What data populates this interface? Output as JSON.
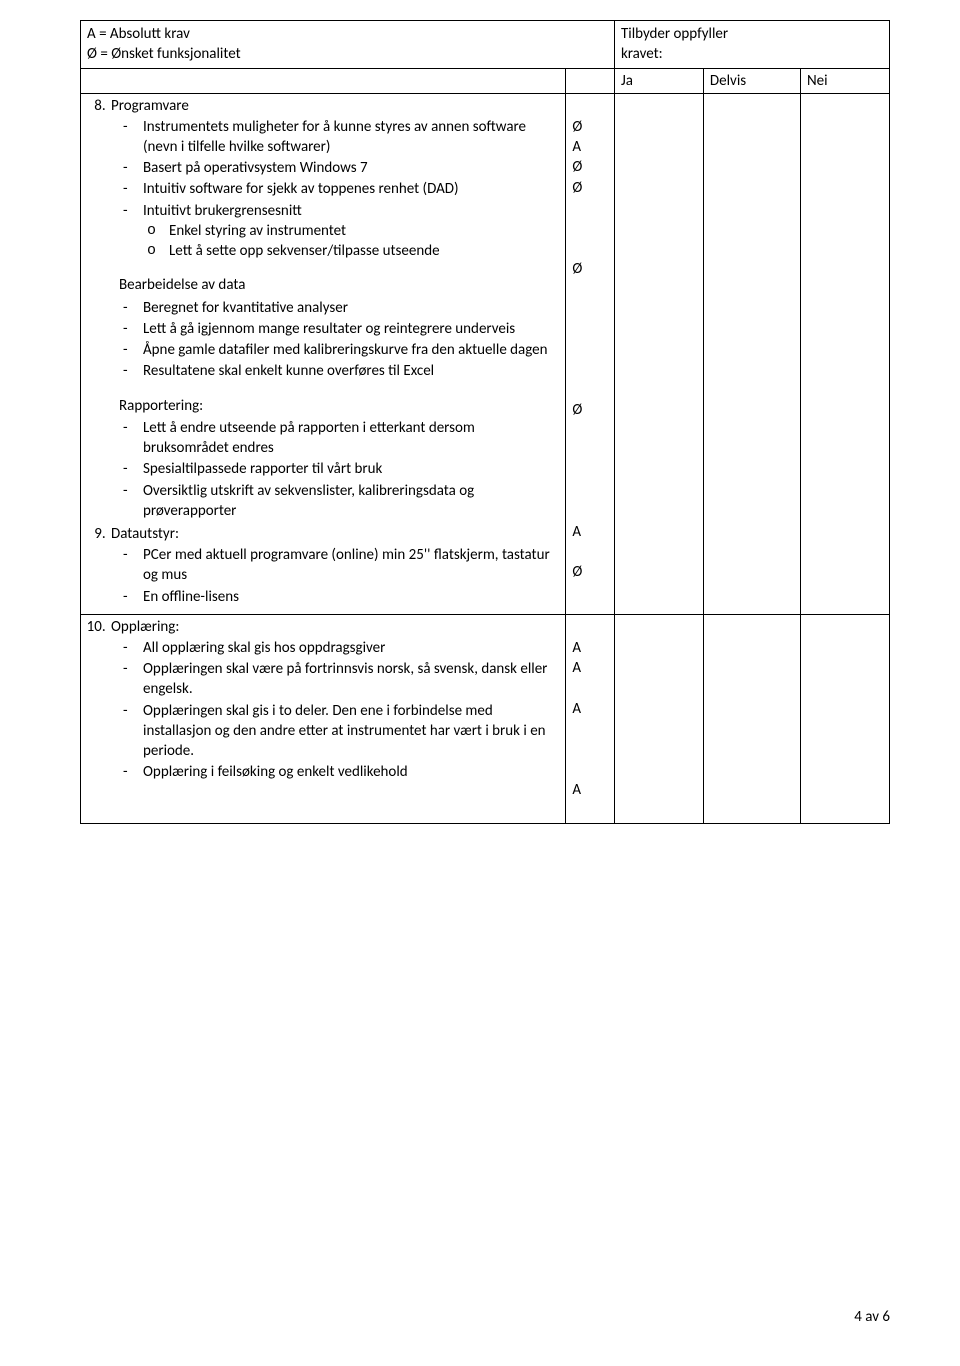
{
  "legend": {
    "line1": "A = Absolutt krav",
    "line2": "Ø = Ønsket funksjonalitet"
  },
  "fulfill": {
    "line1": "Tilbyder oppfyller",
    "line2": "kravet:"
  },
  "cols": {
    "ja": "Ja",
    "delvis": "Delvis",
    "nei": "Nei"
  },
  "sec8": {
    "title": "Programvare",
    "it1": "Instrumentets muligheter for å kunne styres av annen software (nevn i tilfelle hvilke softwarer)",
    "it2": "Basert på operativsystem Windows 7",
    "it3": "Intuitiv software for sjekk av toppenes renhet (DAD)",
    "it4": "Intuitivt brukergrensesnitt",
    "it4a": "Enkel styring av instrumentet",
    "it4b": "Lett å sette opp sekvenser/tilpasse utseende",
    "sub1head": "Bearbeidelse av data",
    "s1i1": "Beregnet for kvantitative analyser",
    "s1i2": "Lett å gå igjennom mange resultater og reintegrere underveis",
    "s1i3": "Åpne gamle datafiler med kalibreringskurve fra den aktuelle dagen",
    "s1i4": "Resultatene skal enkelt kunne overføres til Excel",
    "sub2head": "Rapportering:",
    "s2i1": "Lett å endre utseende på rapporten i etterkant dersom bruksområdet endres",
    "s2i2": "Spesialtilpassede rapporter til vårt bruk",
    "s2i3": "Oversiktlig utskrift av sekvenslister, kalibreringsdata og prøverapporter"
  },
  "sec9": {
    "title": "Datautstyr:",
    "i1": "PCer med aktuell programvare (online) min 25'' flatskjerm, tastatur og mus",
    "i2": "En offline-lisens"
  },
  "sec10": {
    "title": "Opplæring:",
    "i1": "All opplæring skal gis hos oppdragsgiver",
    "i2": "Opplæringen skal være på fortrinnsvis norsk, så svensk, dansk eller engelsk.",
    "i3": "Opplæringen skal gis i to deler. Den ene i forbindelse med installasjon og den andre etter at instrumentet har vært i bruk i en periode.",
    "i4": "Opplæring i feilsøking og enkelt vedlikehold"
  },
  "marks": {
    "r1": [
      "",
      "Ø",
      "A",
      "Ø",
      "Ø",
      "",
      "",
      "",
      "Ø",
      "",
      "",
      "",
      "",
      "",
      "",
      "Ø",
      "",
      "",
      "",
      "",
      "",
      "A",
      "",
      "Ø"
    ],
    "r2": [
      "",
      "A",
      "A",
      "",
      "A",
      "",
      "",
      "",
      "A",
      ""
    ]
  },
  "footer": "4 av 6"
}
